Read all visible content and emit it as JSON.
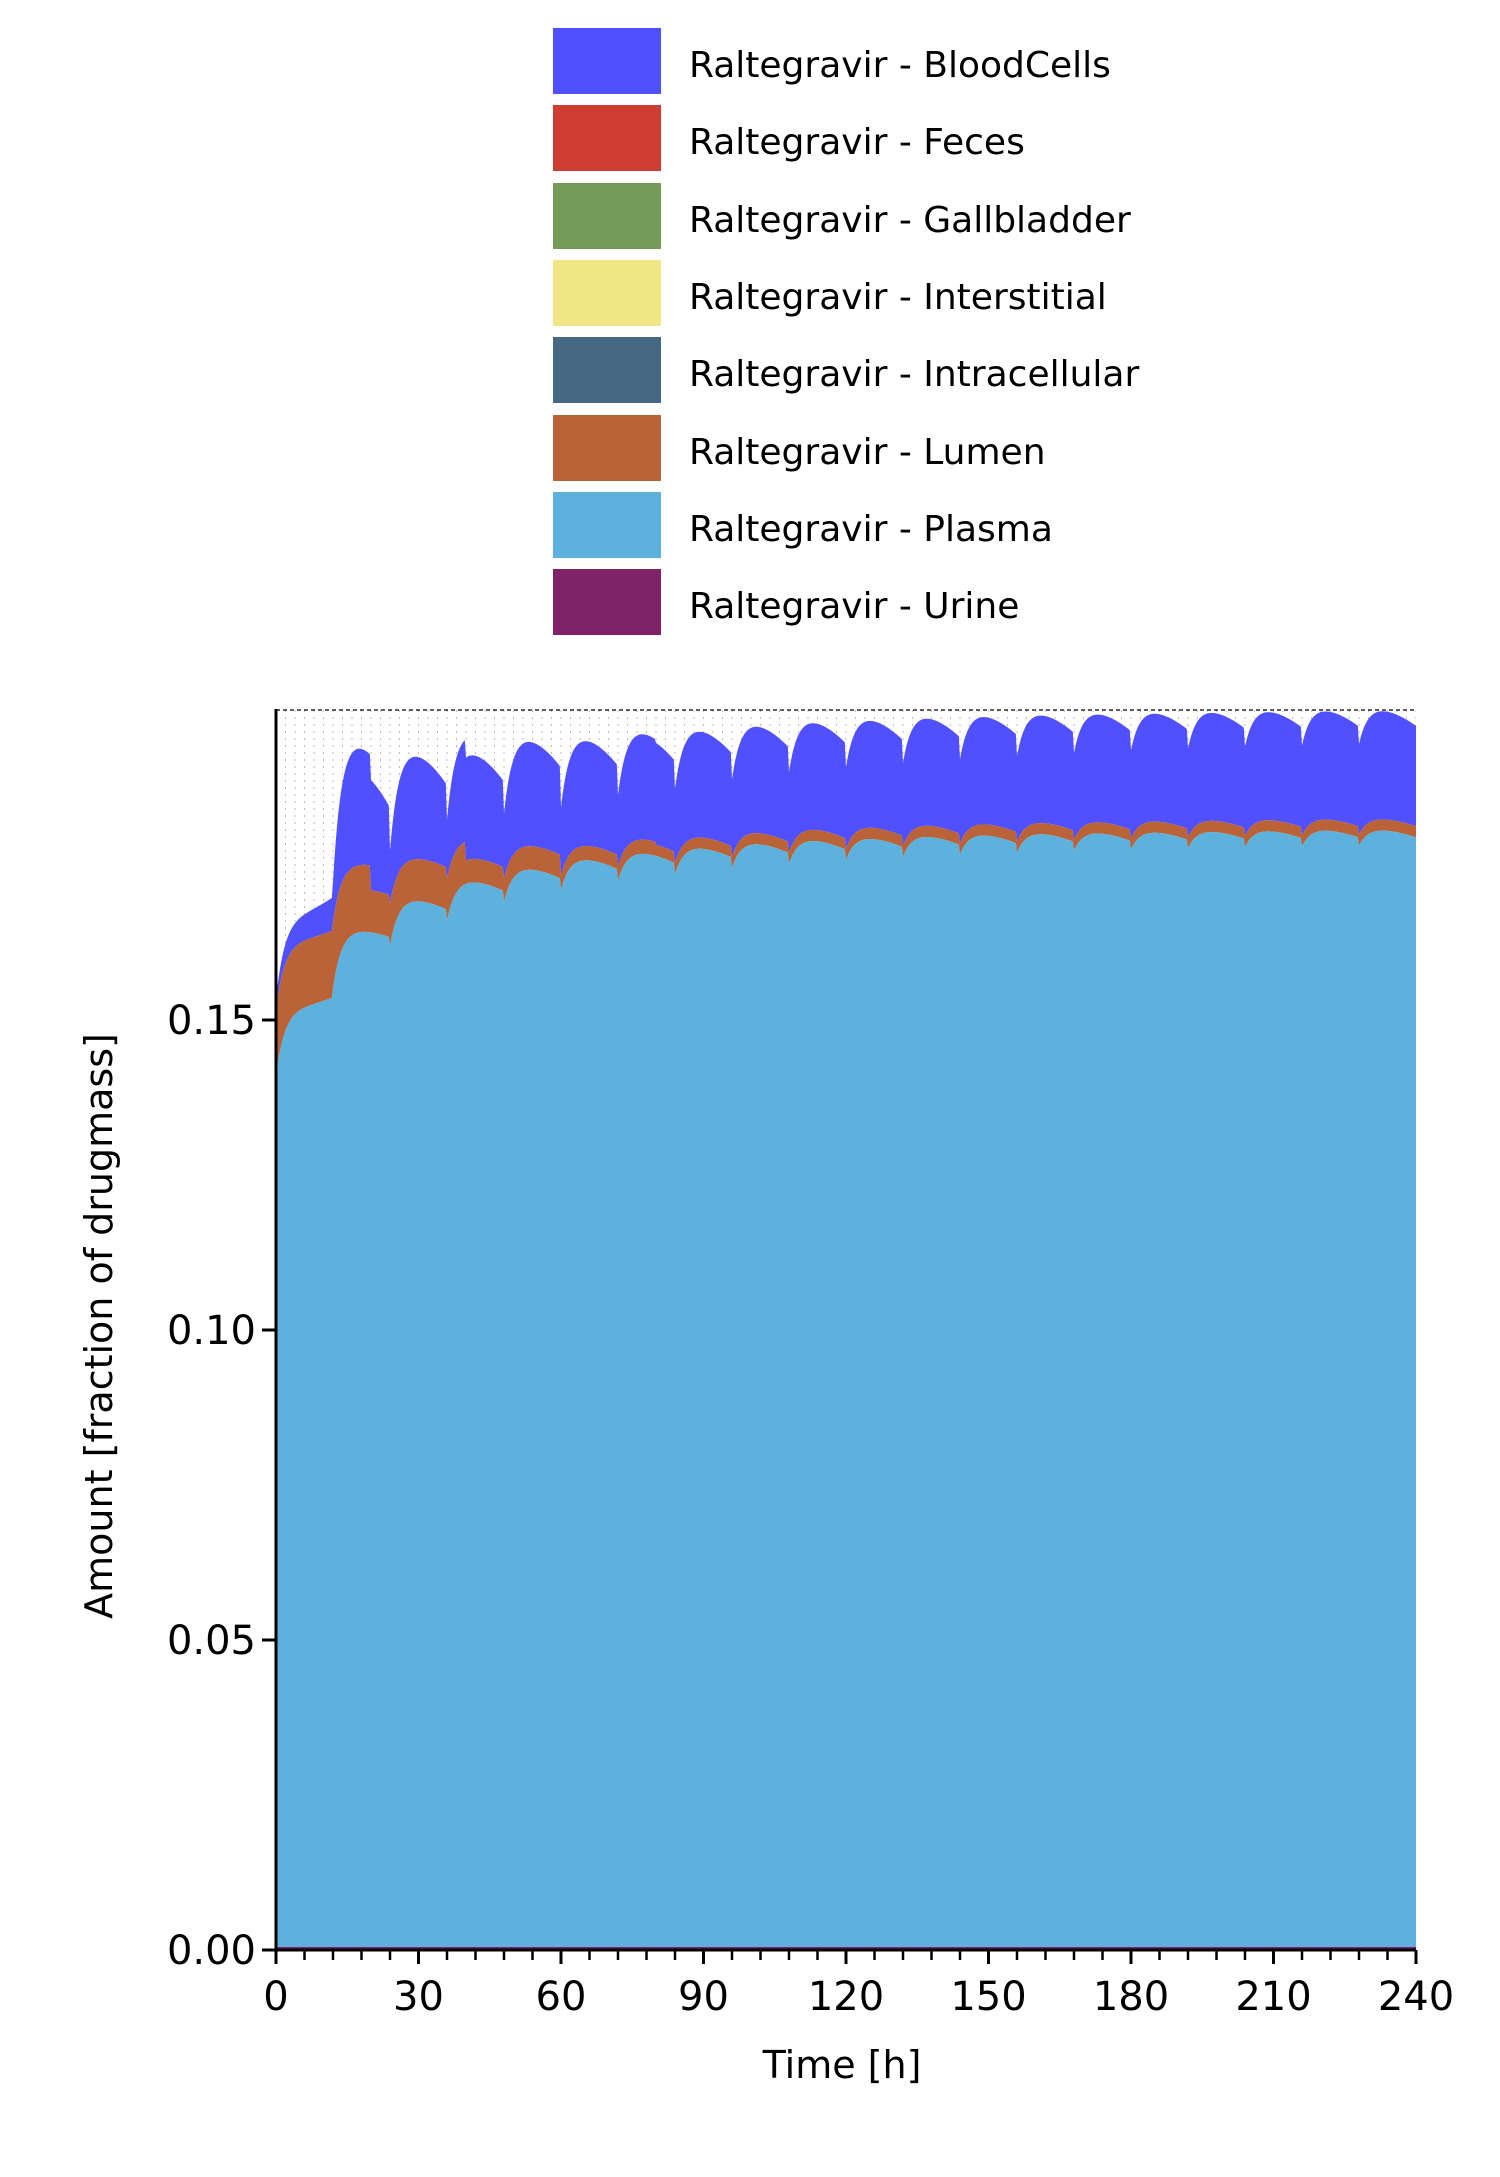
{
  "chart_data": {
    "type": "area",
    "stacked": true,
    "xlabel": "Time [h]",
    "ylabel": "Amount [fraction of drugmass]",
    "xlim": [
      0,
      240
    ],
    "ylim": [
      0,
      0.2
    ],
    "x_ticks": [
      0,
      30,
      60,
      90,
      120,
      150,
      180,
      210,
      240
    ],
    "x_tick_labels": [
      "0",
      "30",
      "60",
      "90",
      "120",
      "150",
      "180",
      "210",
      "240"
    ],
    "y_ticks": [
      0.0,
      0.05,
      0.1,
      0.15
    ],
    "y_tick_labels": [
      "0.00",
      "0.05",
      "0.10",
      "0.15"
    ],
    "dosing_interval_h": 12,
    "legend_position": "top",
    "series": [
      {
        "name": "Raltegravir - BloodCells",
        "color": "#5050FF",
        "values_at_dose_trough": [
          0.0015,
          0.0065,
          0.0085,
          0.0095,
          0.0105,
          0.011,
          0.0115,
          0.012,
          0.0125,
          0.013,
          0.0132,
          0.0134,
          0.0136,
          0.0138,
          0.014,
          0.0142,
          0.0143,
          0.0144,
          0.0145,
          0.0146,
          0.0147
        ],
        "values_at_peak": [
          0.004,
          0.021,
          0.018,
          0.018,
          0.018,
          0.018,
          0.018,
          0.018,
          0.018,
          0.018,
          0.018,
          0.018,
          0.018,
          0.018,
          0.018,
          0.018,
          0.018,
          0.018,
          0.018,
          0.018,
          0.018
        ]
      },
      {
        "name": "Raltegravir - Feces",
        "color": "#CE3D32",
        "values": [
          0.0,
          0.0004,
          0.0006,
          0.0007,
          0.0008
        ]
      },
      {
        "name": "Raltegravir - Gallbladder",
        "color": "#749B58",
        "values": [
          0.0,
          0.0001,
          0.0001,
          0.0001,
          0.0001
        ]
      },
      {
        "name": "Raltegravir - Interstitial",
        "color": "#F0E685",
        "values": [
          0.0,
          0.0001,
          0.0001,
          0.0001,
          0.0001
        ]
      },
      {
        "name": "Raltegravir - Intracellular",
        "color": "#466983",
        "values": [
          0.0,
          0.0001,
          0.0001,
          0.0001,
          0.0001
        ]
      },
      {
        "name": "Raltegravir - Lumen",
        "color": "#BA6338",
        "values": [
          0.01,
          0.006,
          0.003,
          0.0015,
          0.001
        ]
      },
      {
        "name": "Raltegravir - Plasma",
        "color": "#5DB1DD",
        "x": [
          0,
          12,
          24,
          36,
          48,
          60,
          72,
          84,
          96,
          108,
          120,
          132,
          144,
          156,
          168,
          180,
          192,
          204,
          216,
          228,
          240
        ],
        "values_at_dose_trough": [
          0.141,
          0.155,
          0.162,
          0.166,
          0.169,
          0.171,
          0.1725,
          0.1735,
          0.1745,
          0.1752,
          0.1758,
          0.1763,
          0.1767,
          0.177,
          0.1773,
          0.1775,
          0.1777,
          0.1779,
          0.178,
          0.1781,
          0.1782
        ],
        "values_at_peak": [
          0.152,
          0.165,
          0.17,
          0.173,
          0.175,
          0.1765,
          0.1775,
          0.1783,
          0.179,
          0.1795,
          0.1798,
          0.1801,
          0.1803,
          0.1805,
          0.1806,
          0.1807,
          0.1808,
          0.1809,
          0.181,
          0.181,
          0.1811
        ]
      },
      {
        "name": "Raltegravir - Urine",
        "color": "#802268",
        "values": [
          0.0,
          0.0002,
          0.0004,
          0.0005,
          0.0006
        ]
      }
    ]
  }
}
